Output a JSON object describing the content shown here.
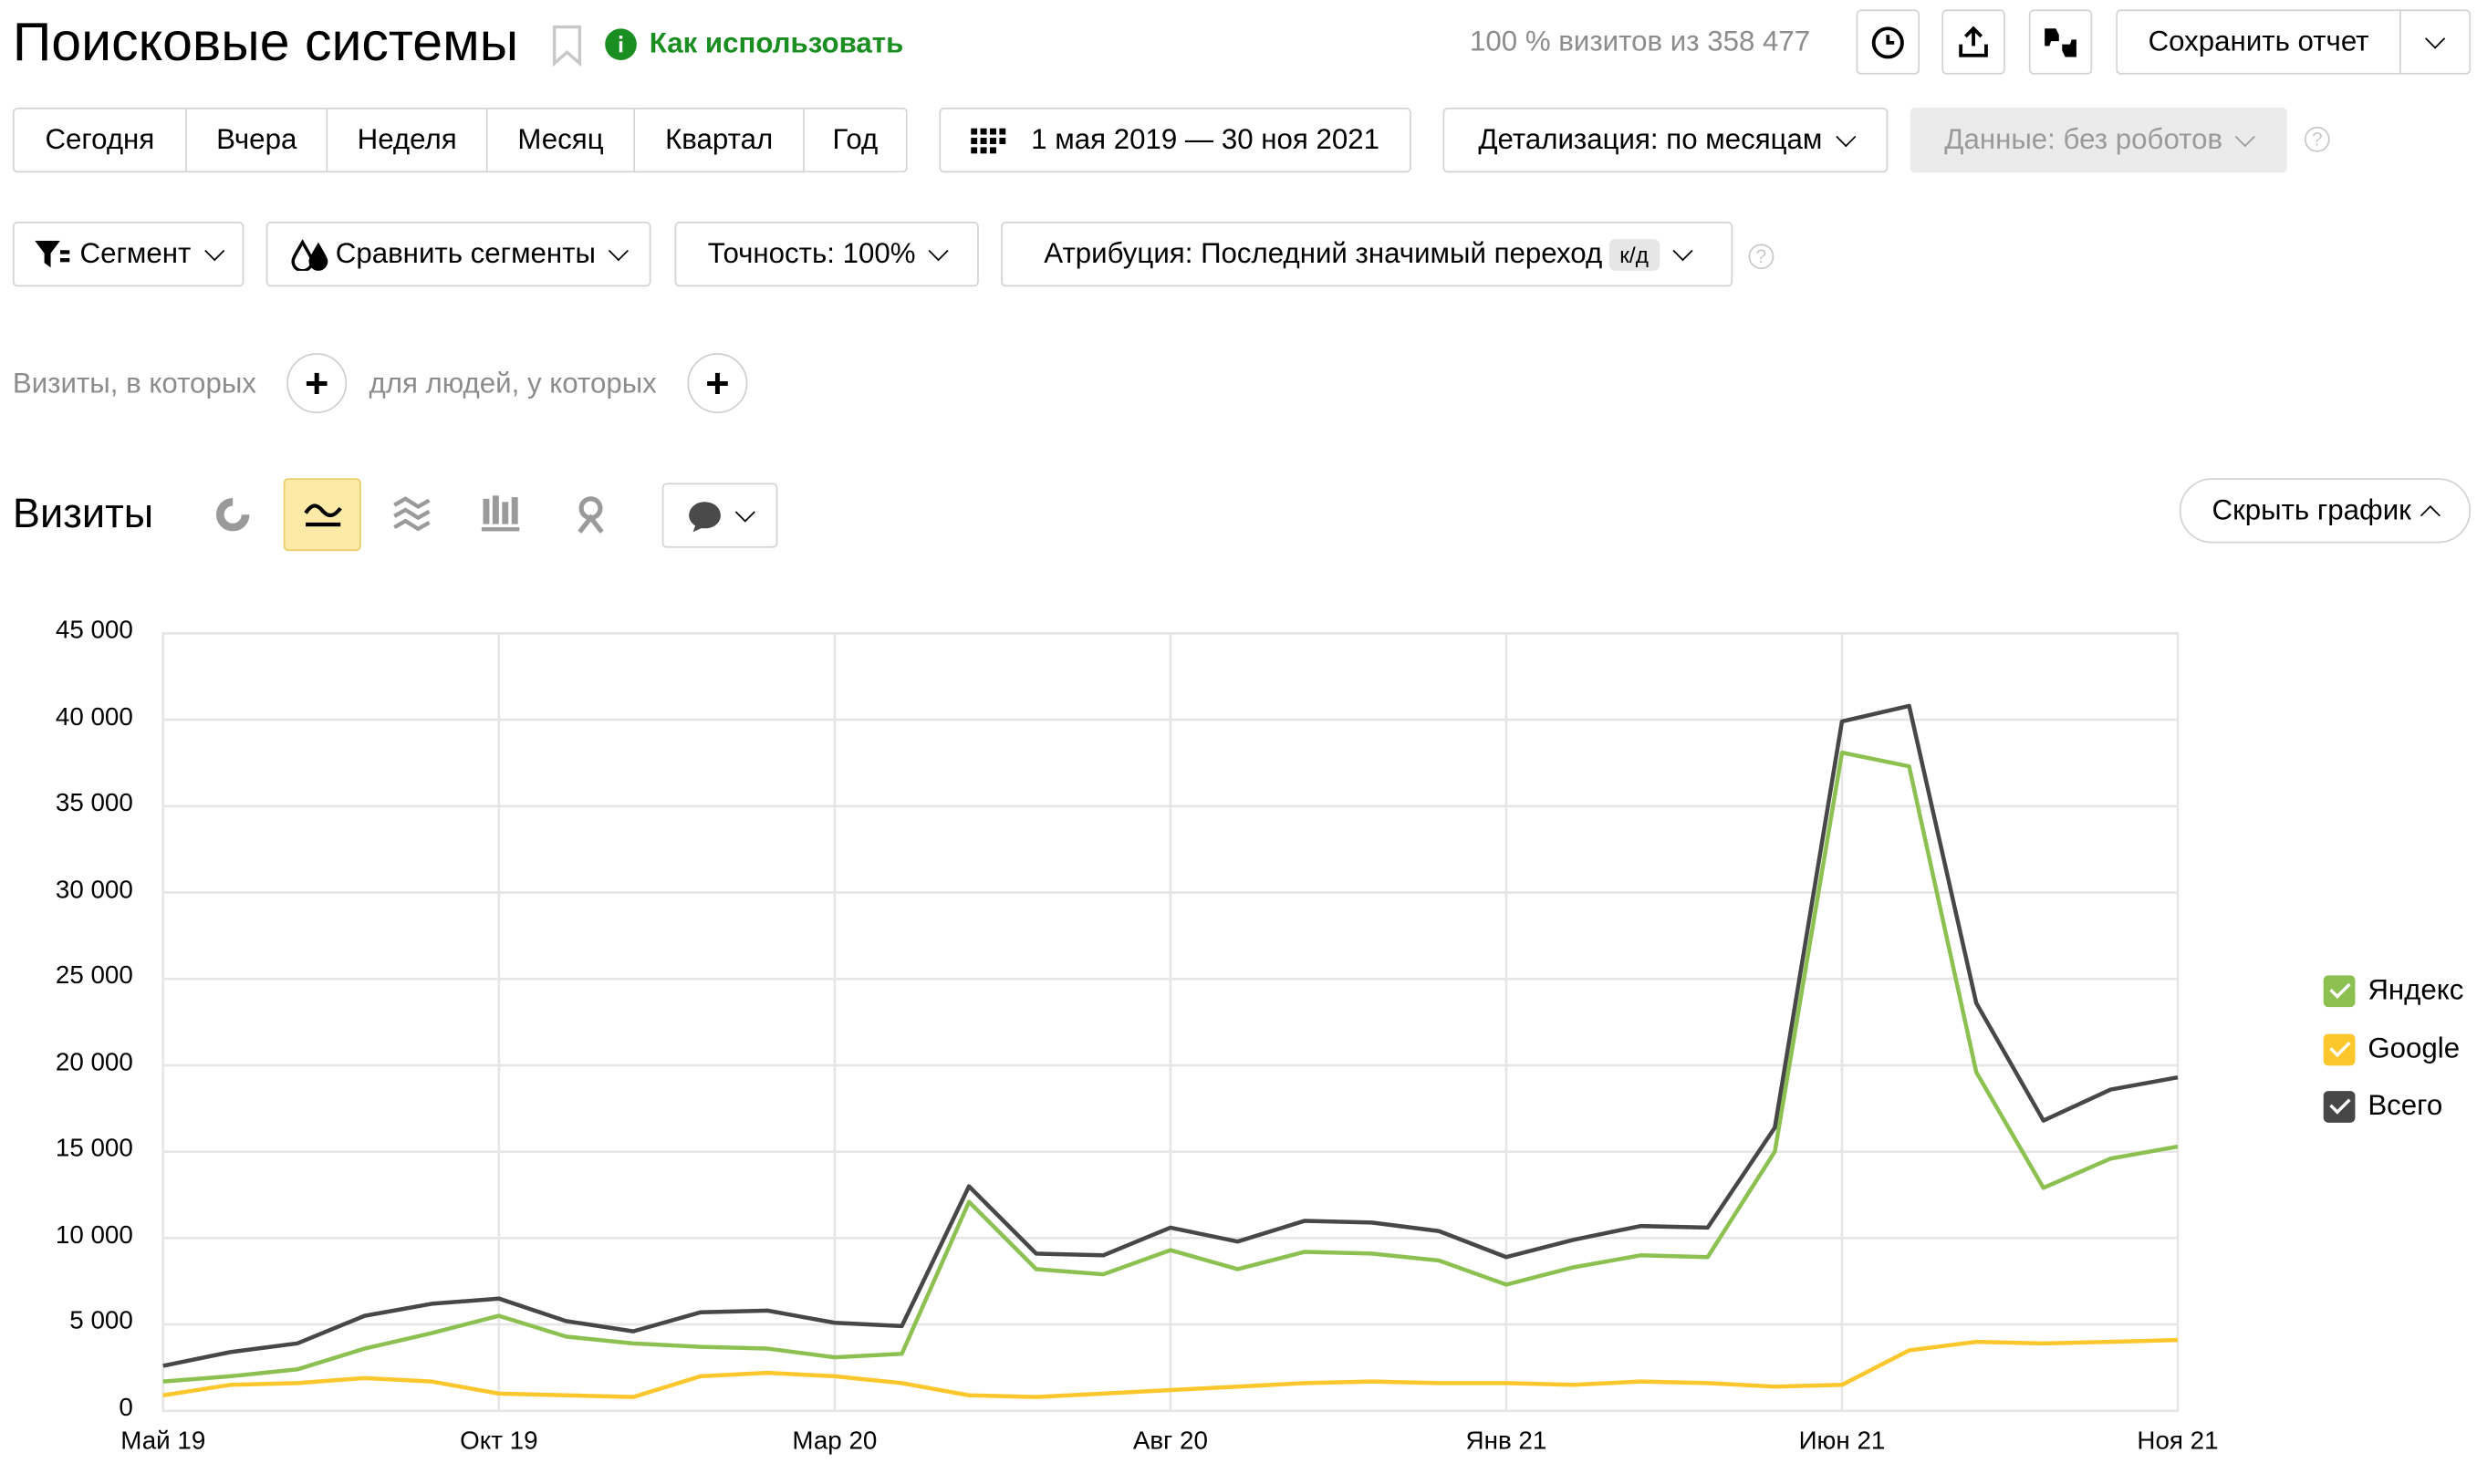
{
  "header": {
    "title": "Поисковые системы",
    "how_to_use": "Как использовать",
    "visits_share": "100 % визитов из 358 477",
    "save_report": "Сохранить отчет"
  },
  "periods": [
    "Сегодня",
    "Вчера",
    "Неделя",
    "Месяц",
    "Квартал",
    "Год"
  ],
  "date_range": "1 мая 2019 — 30 ноя 2021",
  "detail": "Детализация: по месяцам",
  "data_filter": "Данные: без роботов",
  "segment": "Сегмент",
  "compare_segments": "Сравнить сегменты",
  "accuracy": "Точность: 100%",
  "attribution": "Атрибуция: Последний значимый переход",
  "attribution_badge": "к/д",
  "filters": {
    "visits_where": "Визиты, в которых",
    "people_where": "для людей, у которых"
  },
  "chart_section": {
    "title": "Визиты",
    "hide_chart": "Скрыть график"
  },
  "colors": {
    "yandex": "#8cc152",
    "google": "#fcc72c",
    "total": "#474747",
    "accent_green": "#1b8e22",
    "active_tab_bg": "#fdeaa7"
  },
  "chart_data": {
    "type": "line",
    "yticks": [
      "45 000",
      "40 000",
      "35 000",
      "30 000",
      "25 000",
      "20 000",
      "15 000",
      "10 000",
      "5 000",
      "0"
    ],
    "xticks": [
      "Май 19",
      "Окт 19",
      "Мар 20",
      "Авг 20",
      "Янв 21",
      "Июн 21",
      "Ноя 21"
    ],
    "ylim": [
      0,
      45000
    ],
    "grid": true,
    "legend_position": "right",
    "x": [
      "2019-05",
      "2019-06",
      "2019-07",
      "2019-08",
      "2019-09",
      "2019-10",
      "2019-11",
      "2019-12",
      "2020-01",
      "2020-02",
      "2020-03",
      "2020-04",
      "2020-05",
      "2020-06",
      "2020-07",
      "2020-08",
      "2020-09",
      "2020-10",
      "2020-11",
      "2020-12",
      "2021-01",
      "2021-02",
      "2021-03",
      "2021-04",
      "2021-05",
      "2021-06",
      "2021-07",
      "2021-08",
      "2021-09",
      "2021-10",
      "2021-11"
    ],
    "series": [
      {
        "name": "Яндекс",
        "color": "#8cc152",
        "values": [
          1700,
          2000,
          2400,
          3600,
          4500,
          5500,
          4300,
          3900,
          3700,
          3600,
          3100,
          3300,
          12100,
          8200,
          7900,
          9300,
          8200,
          9200,
          9100,
          8700,
          7300,
          8300,
          9000,
          8900,
          15000,
          38100,
          37300,
          19600,
          12900,
          14600,
          15300
        ]
      },
      {
        "name": "Google",
        "color": "#fcc72c",
        "values": [
          900,
          1500,
          1600,
          1900,
          1700,
          1000,
          900,
          800,
          2000,
          2200,
          2000,
          1600,
          900,
          800,
          1000,
          1200,
          1400,
          1600,
          1700,
          1600,
          1600,
          1500,
          1700,
          1600,
          1400,
          1500,
          3500,
          4000,
          3900,
          4000,
          4100
        ]
      },
      {
        "name": "Всего",
        "color": "#474747",
        "values": [
          2600,
          3400,
          3900,
          5500,
          6200,
          6500,
          5200,
          4600,
          5700,
          5800,
          5100,
          4900,
          13000,
          9100,
          9000,
          10600,
          9800,
          11000,
          10900,
          10400,
          8900,
          9900,
          10700,
          10600,
          16400,
          39900,
          40800,
          23600,
          16800,
          18600,
          19300
        ]
      }
    ]
  }
}
